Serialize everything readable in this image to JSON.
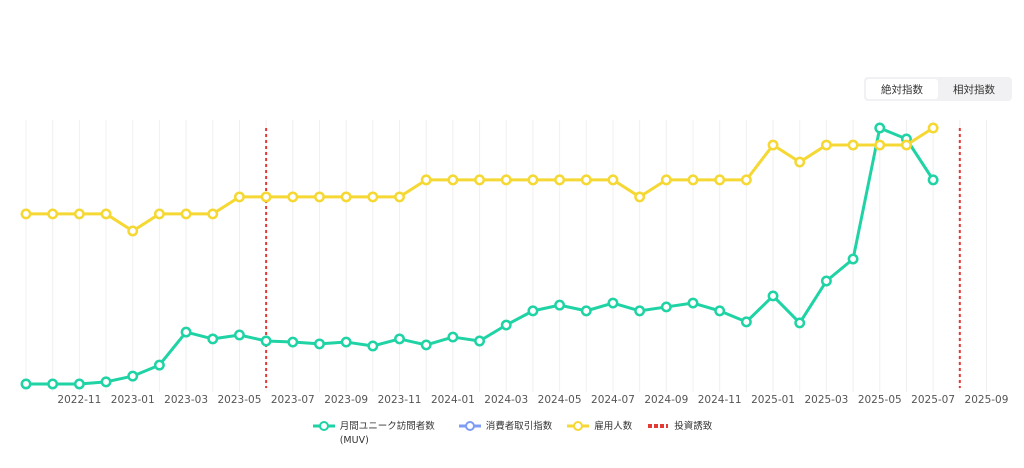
{
  "toggle": {
    "options": [
      "絶対指数",
      "相対指数"
    ]
  },
  "chart_data": {
    "type": "line",
    "categories": [
      null,
      null,
      "2022-11",
      null,
      "2023-01",
      null,
      "2023-03",
      null,
      "2023-05",
      null,
      "2023-07",
      null,
      "2023-09",
      null,
      "2023-11",
      null,
      "2024-01",
      null,
      "2024-03",
      null,
      "2024-05",
      null,
      "2024-07",
      null,
      "2024-09",
      null,
      "2024-11",
      null,
      "2025-01",
      null,
      "2025-03",
      null,
      "2025-05",
      null,
      "2025-07",
      null,
      "2025-09"
    ],
    "ylim": [
      0,
      100
    ],
    "series": [
      {
        "name": "月間ユニーク訪問者数(MUV)",
        "color": "#1fd3a5",
        "values": [
          2.3,
          2.3,
          2.3,
          3.1,
          5.3,
          9.5,
          22.1,
          19.5,
          21.0,
          18.7,
          18.3,
          17.6,
          18.3,
          16.8,
          19.5,
          17.2,
          20.2,
          18.7,
          24.8,
          30.2,
          32.4,
          30.2,
          33.2,
          30.2,
          31.7,
          33.2,
          30.2,
          26.0,
          35.9,
          25.6,
          41.6,
          50.0,
          100,
          95.8,
          80.2,
          null,
          null
        ]
      },
      {
        "name": "消費者取引指数",
        "color": "#7f9cf5",
        "values": [
          null,
          null,
          null,
          null,
          null,
          null,
          null,
          null,
          null,
          null,
          null,
          null,
          null,
          null,
          null,
          null,
          null,
          null,
          null,
          null,
          null,
          null,
          null,
          null,
          null,
          null,
          null,
          null,
          null,
          null,
          null,
          null,
          null,
          null,
          null,
          null,
          null
        ]
      },
      {
        "name": "雇用人数",
        "color": "#f5d833",
        "values": [
          67.2,
          67.2,
          67.2,
          67.2,
          60.7,
          67.2,
          67.2,
          67.2,
          73.7,
          73.7,
          73.7,
          73.7,
          73.7,
          73.7,
          73.7,
          80.2,
          80.2,
          80.2,
          80.2,
          80.2,
          80.2,
          80.2,
          80.2,
          73.7,
          80.2,
          80.2,
          80.2,
          80.2,
          93.5,
          87.0,
          93.5,
          93.5,
          93.5,
          93.5,
          100,
          null,
          null
        ]
      }
    ],
    "events": {
      "name": "投資誘致",
      "color": "#e53935",
      "category_indices": [
        9,
        35
      ]
    }
  }
}
